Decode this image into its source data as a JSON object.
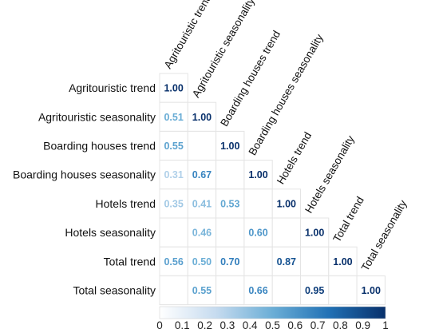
{
  "chart_data": {
    "type": "heatmap",
    "variables": [
      "Agritouristic trend",
      "Agritouristic seasonality",
      "Boarding houses trend",
      "Boarding houses seasonality",
      "Hotels trend",
      "Hotels seasonality",
      "Total trend",
      "Total seasonality"
    ],
    "matrix": [
      [
        1.0,
        null,
        null,
        null,
        null,
        null,
        null,
        null
      ],
      [
        0.51,
        1.0,
        null,
        null,
        null,
        null,
        null,
        null
      ],
      [
        0.55,
        null,
        1.0,
        null,
        null,
        null,
        null,
        null
      ],
      [
        0.31,
        0.67,
        null,
        1.0,
        null,
        null,
        null,
        null
      ],
      [
        0.35,
        0.41,
        0.53,
        null,
        1.0,
        null,
        null,
        null
      ],
      [
        null,
        0.46,
        null,
        0.6,
        null,
        1.0,
        null,
        null
      ],
      [
        0.56,
        0.5,
        0.7,
        null,
        0.87,
        null,
        1.0,
        null
      ],
      [
        null,
        0.55,
        null,
        0.66,
        null,
        0.95,
        null,
        1.0
      ]
    ],
    "value_labels": [
      [
        "1.00",
        null,
        null,
        null,
        null,
        null,
        null,
        null
      ],
      [
        "0.51",
        "1.00",
        null,
        null,
        null,
        null,
        null,
        null
      ],
      [
        "0.55",
        null,
        "1.00",
        null,
        null,
        null,
        null,
        null
      ],
      [
        "0.31",
        "0.67",
        null,
        "1.00",
        null,
        null,
        null,
        null
      ],
      [
        "0.35",
        "0.41",
        "0.53",
        null,
        "1.00",
        null,
        null,
        null
      ],
      [
        null,
        "0.46",
        null,
        "0.60",
        null,
        "1.00",
        null,
        null
      ],
      [
        "0.56",
        "0.50",
        "0.70",
        null,
        "0.87",
        null,
        "1.00",
        null
      ],
      [
        null,
        "0.55",
        null,
        "0.66",
        null,
        "0.95",
        null,
        "1.00"
      ]
    ],
    "colorbar": {
      "range": [
        0,
        1
      ],
      "ticks": [
        "0",
        "0.1",
        "0.2",
        "0.3",
        "0.4",
        "0.5",
        "0.6",
        "0.7",
        "0.8",
        "0.9",
        "1"
      ],
      "color_low": "#ffffff",
      "color_high": "#08306b"
    },
    "layout": "lower-triangle"
  }
}
